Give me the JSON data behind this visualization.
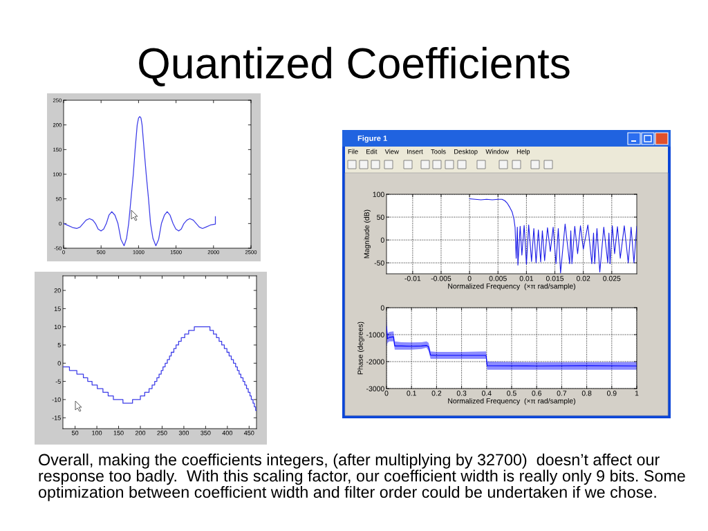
{
  "chart_data": [
    {
      "type": "other",
      "title": "Quantized Coefficients",
      "annotations": [
        "Overall, making the coefficients integers, (after multiplying by 32700)  doesn’t affect our response too badly.  With this scaling factor, our coefficient width is really only 9 bits. Some optimization between coefficient width and filter order could be undertaken if we chose."
      ]
    },
    {
      "type": "line",
      "color": "#3c3ce8",
      "xlim": [
        0,
        2500
      ],
      "ylim": [
        -50,
        250
      ],
      "xticks": [
        0,
        500,
        1000,
        1500,
        2000,
        2500
      ],
      "yticks": [
        -50,
        0,
        50,
        100,
        150,
        200,
        250
      ],
      "x": [
        0,
        60,
        120,
        175,
        220,
        260,
        300,
        345,
        390,
        425,
        460,
        499,
        535,
        570,
        605,
        643,
        685,
        725,
        765,
        807,
        840,
        868,
        899,
        930,
        954,
        982,
        1000,
        1016,
        1032,
        1047,
        1074,
        1102,
        1133,
        1160,
        1192,
        1231,
        1268,
        1305,
        1345,
        1382,
        1420,
        1460,
        1497,
        1536,
        1570,
        1605,
        1645,
        1684,
        1730,
        1770,
        1810,
        1853,
        1900,
        1960,
        2025,
        2025
      ],
      "values": [
        0,
        -4,
        -8,
        -10,
        -7,
        0,
        7,
        10,
        7,
        0,
        -11,
        -15,
        -11,
        0,
        17,
        24,
        17,
        0,
        -32,
        -45,
        -30,
        0,
        50,
        100,
        150,
        200,
        214,
        217,
        214,
        200,
        150,
        100,
        50,
        0,
        -30,
        -45,
        -32,
        0,
        17,
        24,
        17,
        0,
        -11,
        -15,
        -11,
        0,
        7,
        10,
        7,
        0,
        -7,
        -10,
        -7,
        -3,
        -1,
        14
      ]
    },
    {
      "type": "other",
      "title": "Figure 1",
      "annotations": [
        "File",
        "Edit",
        "View",
        "Insert",
        "Tools",
        "Desktop",
        "Window",
        "Help"
      ]
    },
    {
      "type": "line",
      "color": "#1a1ae6",
      "xlim": [
        -0.0146,
        0.0294
      ],
      "ylim": [
        -74,
        100
      ],
      "xticks": [
        -0.01,
        -0.005,
        0,
        0.005,
        0.01,
        0.015,
        0.02,
        0.025
      ],
      "yticks": [
        -50,
        0,
        50,
        100
      ],
      "grid": true,
      "xlabel": "Normalized Frequency  (×π rad/sample)",
      "ylabel": "Magnitude (dB)",
      "x": [
        0,
        0.001,
        0.002,
        0.003,
        0.004,
        0.005,
        0.0057,
        0.0062,
        0.0066,
        0.007,
        0.0075,
        0.0078,
        0.008,
        0.0082,
        0.0084,
        0.0085,
        0.0089,
        0.0092,
        0.0096,
        0.01,
        0.0104,
        0.0109,
        0.0113,
        0.0117,
        0.0121,
        0.0125,
        0.0128,
        0.0132,
        0.0137,
        0.0142,
        0.0147,
        0.0152,
        0.0156,
        0.016,
        0.0168,
        0.0176,
        0.0178,
        0.018,
        0.0185,
        0.019,
        0.0195,
        0.02,
        0.0208,
        0.0215,
        0.0218,
        0.022,
        0.0224,
        0.0229,
        0.0236,
        0.0243,
        0.0245,
        0.0247,
        0.0251,
        0.0255,
        0.026,
        0.0265,
        0.0272,
        0.0279,
        0.0284,
        0.0289,
        0.0294
      ],
      "values": [
        90,
        89,
        88,
        89,
        88,
        89,
        89,
        86,
        81,
        73,
        61,
        46,
        28,
        -40,
        28,
        -55,
        30,
        -33,
        32,
        -53,
        33,
        -47,
        25,
        -50,
        22,
        -48,
        20,
        -45,
        27,
        -25,
        28,
        -52,
        25,
        -72,
        35,
        -52,
        20,
        -52,
        30,
        -30,
        31,
        -20,
        33,
        -52,
        15,
        -52,
        25,
        -70,
        28,
        -50,
        15,
        -52,
        31,
        -30,
        29,
        -40,
        31,
        -50,
        28,
        -50,
        30
      ]
    },
    {
      "type": "step",
      "color": "#3c3ce8",
      "xlim": [
        22,
        467
      ],
      "ylim": [
        -18,
        24
      ],
      "xticks": [
        50,
        100,
        150,
        200,
        250,
        300,
        350,
        400,
        450
      ],
      "yticks": [
        -15,
        -10,
        -5,
        0,
        5,
        10,
        15,
        20
      ],
      "x": [
        22,
        37,
        54,
        69,
        79,
        89,
        101,
        114,
        126,
        138,
        160,
        182,
        200,
        210,
        220,
        227,
        233,
        238,
        243,
        248,
        252,
        257,
        262,
        267,
        271,
        277,
        282,
        288,
        294,
        302,
        311,
        324,
        360,
        368,
        375,
        381,
        387,
        393,
        399,
        404,
        409,
        414,
        419,
        423,
        427,
        431,
        436,
        440,
        444,
        448,
        452,
        455,
        459,
        462,
        465,
        467
      ],
      "values": [
        -1,
        -2,
        -3,
        -4,
        -5,
        -6,
        -7,
        -8,
        -9,
        -10,
        -11,
        -10,
        -9,
        -8,
        -7,
        -6,
        -5,
        -4,
        -3,
        -2,
        -1,
        0,
        1,
        2,
        3,
        4,
        5,
        6,
        7,
        8,
        9,
        10,
        9,
        8,
        7,
        6,
        5,
        4,
        3,
        2,
        1,
        0,
        -1,
        -2,
        -3,
        -4,
        -5,
        -6,
        -7,
        -8,
        -9,
        -10,
        -11,
        -12,
        -13,
        -13
      ]
    },
    {
      "type": "line",
      "xlim": [
        0,
        1
      ],
      "ylim": [
        -3000,
        0
      ],
      "xticks": [
        0,
        0.1,
        0.2,
        0.3,
        0.4,
        0.5,
        0.6,
        0.7,
        0.8,
        0.9,
        1
      ],
      "yticks": [
        -3000,
        -2000,
        -1000,
        0
      ],
      "grid": true,
      "xlabel": "Normalized Frequency  (×π rad/sample)",
      "ylabel": "Phase (degrees)",
      "x": [
        0,
        0.004,
        0.012,
        0.028,
        0.033,
        0.06,
        0.1,
        0.14,
        0.16,
        0.168,
        0.176,
        0.2,
        0.3,
        0.398,
        0.402,
        0.6,
        0.8,
        1
      ],
      "series": [
        {
          "color": "#0000ff",
          "values": [
            -700,
            -1150,
            -1100,
            -1080,
            -1420,
            -1420,
            -1430,
            -1420,
            -1400,
            -1450,
            -1760,
            -1770,
            -1770,
            -1770,
            -2150,
            -2160,
            -2150,
            -2160
          ],
          "lower": [
            -1450,
            -1300,
            -1250,
            -1250,
            -1560,
            -1560,
            -1560,
            -1530,
            -1480,
            -1600,
            -1900,
            -1900,
            -1900,
            -1900,
            -2300,
            -2300,
            -2300,
            -2300
          ],
          "upper": [
            -300,
            -950,
            -900,
            -880,
            -1250,
            -1280,
            -1290,
            -1280,
            -1250,
            -1300,
            -1620,
            -1640,
            -1640,
            -1620,
            -2000,
            -2020,
            -2020,
            -2010
          ]
        }
      ]
    }
  ]
}
